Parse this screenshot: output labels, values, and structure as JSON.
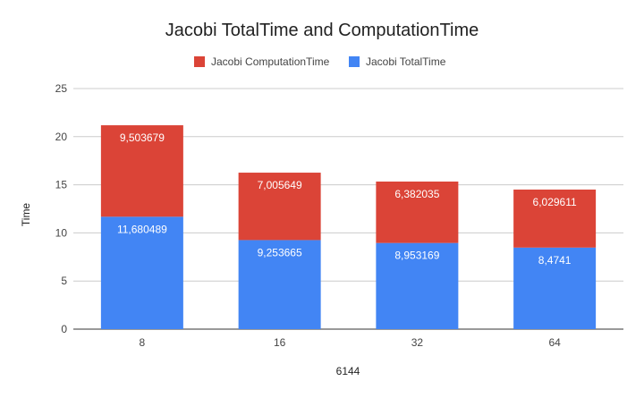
{
  "chart_data": {
    "type": "bar",
    "stacked": true,
    "title": "Jacobi TotalTime and ComputationTime",
    "xlabel": "6144",
    "ylabel": "Time",
    "categories": [
      "8",
      "16",
      "32",
      "64"
    ],
    "ylim": [
      0,
      25
    ],
    "yticks": [
      0,
      5,
      10,
      15,
      20,
      25
    ],
    "grid": true,
    "legend_position": "top",
    "series": [
      {
        "name": "Jacobi TotalTime",
        "color": "#4285f4",
        "values": [
          11.680489,
          9.253665,
          8.953169,
          8.4741
        ],
        "labels": [
          "11,680489",
          "9,253665",
          "8,953169",
          "8,4741"
        ]
      },
      {
        "name": "Jacobi ComputationTime",
        "color": "#db4437",
        "values": [
          9.503679,
          7.005649,
          6.382035,
          6.029611
        ],
        "labels": [
          "9,503679",
          "7,005649",
          "6,382035",
          "6,029611"
        ]
      }
    ],
    "legend_order": [
      "Jacobi ComputationTime",
      "Jacobi TotalTime"
    ]
  }
}
